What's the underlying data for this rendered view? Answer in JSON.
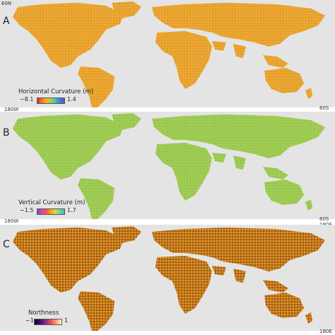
{
  "panels": [
    {
      "letter": "A",
      "legend_title": "Horizontal Curvature (m)",
      "min": "−8.1",
      "max": "1.4",
      "colormap": [
        "#e8202a",
        "#f47a20",
        "#f5b51f",
        "#9fd34a",
        "#3ec4b6",
        "#3a7fd6",
        "#6b4fc4"
      ],
      "land_color": "#f5a623",
      "texture_colors": [
        "#3c6fd8",
        "#6fc9b8"
      ]
    },
    {
      "letter": "B",
      "legend_title": "Vertical Curvature (m)",
      "min": "−1.5",
      "max": "1.7",
      "colormap": [
        "#6b4fc4",
        "#d04aa6",
        "#f2564a",
        "#f5a623",
        "#c8e04a",
        "#6fd39a",
        "#44b8d4"
      ],
      "land_color": "#9fd34a",
      "texture_colors": [
        "#6a5acd",
        "#e0569a"
      ]
    },
    {
      "letter": "C",
      "legend_title": "Northness",
      "min": "−1",
      "max": "1",
      "colormap": [
        "#0d0829",
        "#3b0f6f",
        "#8c2981",
        "#de4968",
        "#fe9f6d",
        "#fcfdbf"
      ],
      "land_color": "#c87a14",
      "texture_colors": [
        "#2b0a3a",
        "#ffd75e"
      ]
    }
  ],
  "coords": {
    "lat_top": "60N",
    "lon_left": "180W",
    "lat_bottom": "60S",
    "lon_right": "180E"
  },
  "background": "#e4e4e4"
}
